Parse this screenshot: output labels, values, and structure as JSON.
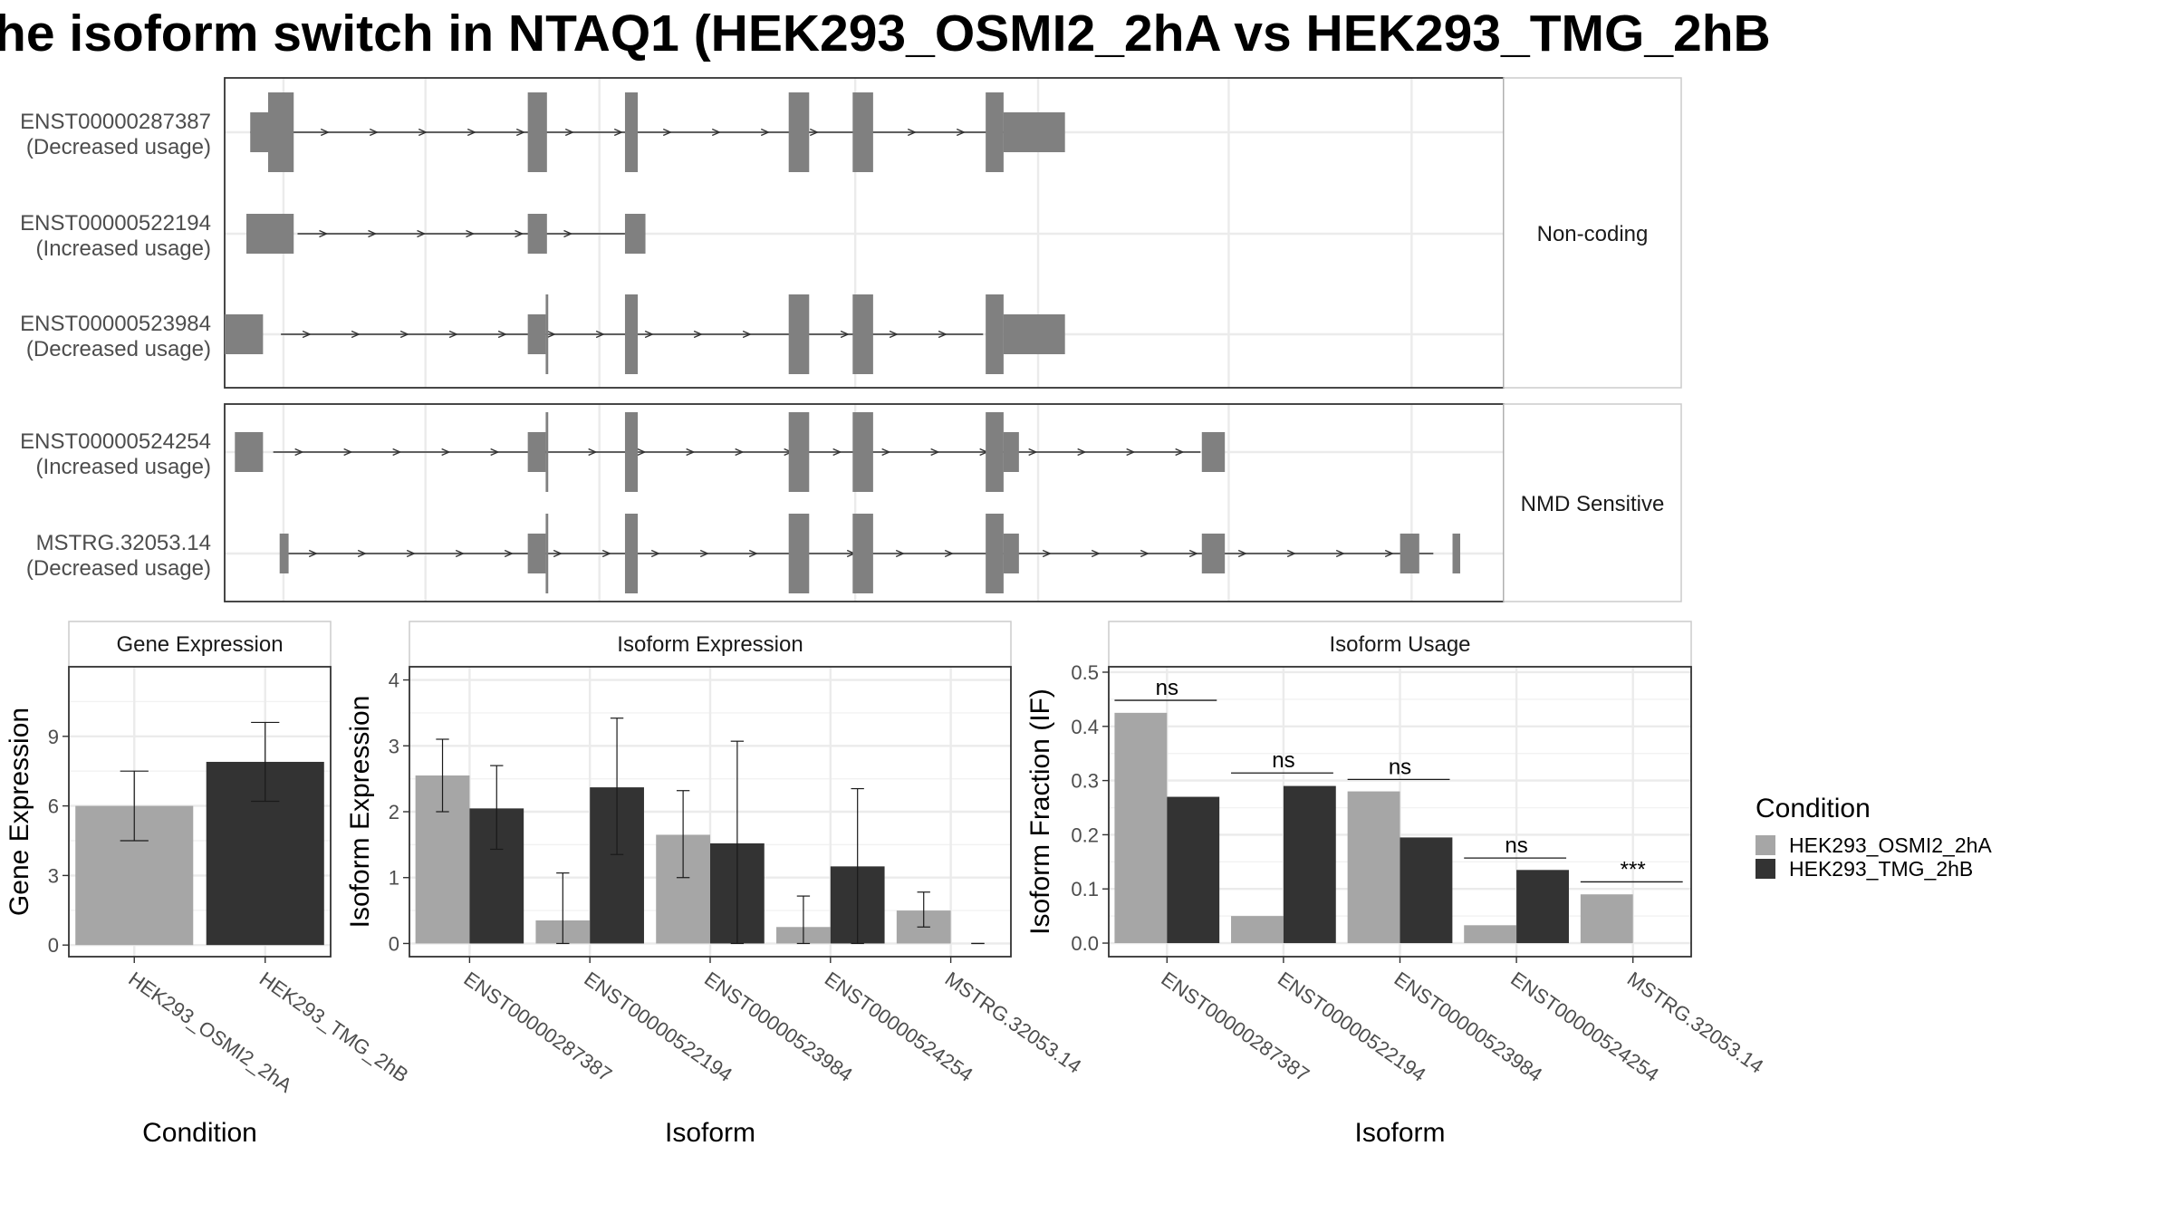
{
  "title": "he isoform switch in NTAQ1 (HEK293_OSMI2_2hA vs HEK293_TMG_2hB",
  "colors": {
    "condition_a": "#a6a6a6",
    "condition_b": "#333333",
    "exon": "#808080",
    "intron": "#333333",
    "grid": "#ebebeb",
    "panel_border": "#333333",
    "strip_border": "#cccccc",
    "axis_text": "#4d4d4d"
  },
  "transcript_panel": {
    "groups": [
      {
        "label": "Non-coding",
        "transcripts": [
          {
            "id": "ENST00000287387",
            "usage": "(Decreased usage)",
            "range": [
              0.02,
              0.613
            ],
            "exons": [
              [
                0.02,
                0.034,
                "s"
              ],
              [
                0.034,
                0.054,
                "t"
              ],
              [
                0.237,
                0.252,
                "t"
              ],
              [
                0.313,
                0.323,
                "t"
              ],
              [
                0.441,
                0.457,
                "t"
              ],
              [
                0.491,
                0.507,
                "t"
              ],
              [
                0.595,
                0.609,
                "t"
              ],
              [
                0.609,
                0.657,
                "s"
              ]
            ]
          },
          {
            "id": "ENST00000522194",
            "usage": "(Increased usage)",
            "range": [
              0.057,
              0.313
            ],
            "exons": [
              [
                0.017,
                0.054,
                "s"
              ],
              [
                0.237,
                0.252,
                "s"
              ],
              [
                0.313,
                0.329,
                "s"
              ]
            ]
          },
          {
            "id": "ENST00000523984",
            "usage": "(Decreased usage)",
            "range": [
              0.044,
              0.593
            ],
            "exons": [
              [
                0.0,
                0.03,
                "s"
              ],
              [
                0.237,
                0.251,
                "s"
              ],
              [
                0.251,
                0.253,
                "t"
              ],
              [
                0.313,
                0.323,
                "t"
              ],
              [
                0.441,
                0.457,
                "t"
              ],
              [
                0.491,
                0.507,
                "t"
              ],
              [
                0.595,
                0.609,
                "t"
              ],
              [
                0.609,
                0.657,
                "s"
              ]
            ]
          }
        ]
      },
      {
        "label": "NMD Sensitive",
        "transcripts": [
          {
            "id": "ENST00000524254",
            "usage": "(Increased usage)",
            "range": [
              0.038,
              0.763
            ],
            "exons": [
              [
                0.008,
                0.03,
                "s"
              ],
              [
                0.237,
                0.251,
                "s"
              ],
              [
                0.251,
                0.253,
                "t"
              ],
              [
                0.313,
                0.323,
                "t"
              ],
              [
                0.441,
                0.457,
                "t"
              ],
              [
                0.491,
                0.507,
                "t"
              ],
              [
                0.595,
                0.609,
                "t"
              ],
              [
                0.609,
                0.621,
                "s"
              ],
              [
                0.764,
                0.782,
                "s"
              ]
            ]
          },
          {
            "id": "MSTRG.32053.14",
            "usage": "(Decreased usage)",
            "range": [
              0.049,
              0.945
            ],
            "exons": [
              [
                0.043,
                0.05,
                "s"
              ],
              [
                0.237,
                0.251,
                "s"
              ],
              [
                0.251,
                0.253,
                "t"
              ],
              [
                0.313,
                0.323,
                "t"
              ],
              [
                0.441,
                0.457,
                "t"
              ],
              [
                0.491,
                0.507,
                "t"
              ],
              [
                0.595,
                0.609,
                "t"
              ],
              [
                0.609,
                0.621,
                "s"
              ],
              [
                0.764,
                0.782,
                "s"
              ],
              [
                0.919,
                0.934,
                "s"
              ],
              [
                0.96,
                0.966,
                "s"
              ]
            ]
          }
        ]
      }
    ]
  },
  "chart_data": [
    {
      "type": "bar",
      "title": "Gene Expression",
      "xlabel": "Condition",
      "ylabel": "Gene Expression",
      "ylim": [
        -0.5,
        12.0
      ],
      "yticks": [
        0,
        3,
        6,
        9
      ],
      "categories": [
        "HEK293_OSMI2_2hA",
        "HEK293_TMG_2hB"
      ],
      "values": [
        6.0,
        7.9
      ],
      "error_low": [
        4.5,
        6.2
      ],
      "error_high": [
        7.5,
        9.6
      ],
      "bar_colors": [
        "#a6a6a6",
        "#333333"
      ],
      "grid": true
    },
    {
      "type": "bar",
      "title": "Isoform Expression",
      "xlabel": "Isoform",
      "ylabel": "Isoform Expression",
      "ylim": [
        -0.2,
        4.2
      ],
      "yticks": [
        0,
        1,
        2,
        3,
        4
      ],
      "categories": [
        "ENST00000287387",
        "ENST00000522194",
        "ENST00000523984",
        "ENST00000524254",
        "MSTRG.32053.14"
      ],
      "series": [
        {
          "name": "HEK293_OSMI2_2hA",
          "values": [
            2.55,
            0.35,
            1.65,
            0.25,
            0.5
          ],
          "error_low": [
            2.0,
            0.0,
            1.0,
            0.0,
            0.25
          ],
          "error_high": [
            3.1,
            1.07,
            2.32,
            0.72,
            0.78
          ]
        },
        {
          "name": "HEK293_TMG_2hB",
          "values": [
            2.05,
            2.37,
            1.52,
            1.17,
            0.0
          ],
          "error_low": [
            1.43,
            1.35,
            0.0,
            0.0,
            0.0
          ],
          "error_high": [
            2.7,
            3.42,
            3.07,
            2.35,
            0.0
          ]
        }
      ],
      "grid": true
    },
    {
      "type": "bar",
      "title": "Isoform Usage",
      "xlabel": "Isoform",
      "ylabel": "Isoform Fraction (IF)",
      "ylim": [
        -0.025,
        0.51
      ],
      "yticks": [
        0.0,
        0.1,
        0.2,
        0.3,
        0.4,
        0.5
      ],
      "categories": [
        "ENST00000287387",
        "ENST00000522194",
        "ENST00000523984",
        "ENST00000524254",
        "MSTRG.32053.14"
      ],
      "series": [
        {
          "name": "HEK293_OSMI2_2hA",
          "values": [
            0.425,
            0.05,
            0.28,
            0.033,
            0.09
          ]
        },
        {
          "name": "HEK293_TMG_2hB",
          "values": [
            0.27,
            0.29,
            0.195,
            0.135,
            0.0
          ]
        }
      ],
      "significance": [
        {
          "label": "ns",
          "y": 0.448
        },
        {
          "label": "ns",
          "y": 0.314
        },
        {
          "label": "ns",
          "y": 0.302
        },
        {
          "label": "ns",
          "y": 0.157
        },
        {
          "label": "***",
          "y": 0.113
        }
      ],
      "grid": true
    }
  ],
  "legend": {
    "title": "Condition",
    "position": "right",
    "items": [
      {
        "label": "HEK293_OSMI2_2hA",
        "color": "#a6a6a6"
      },
      {
        "label": "HEK293_TMG_2hB",
        "color": "#333333"
      }
    ]
  }
}
